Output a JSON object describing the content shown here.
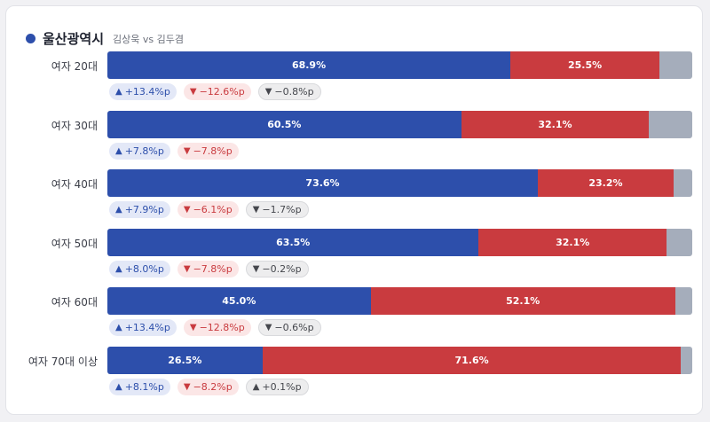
{
  "header": {
    "region": "울산광역시",
    "subtitle": "김상욱 vs 김두겸"
  },
  "colors": {
    "kim_sang_wook": "#2d4fab",
    "kim_doo_gyeom": "#c93b3f",
    "other": "#a5adbb"
  },
  "chart_data": {
    "type": "bar",
    "orientation": "horizontal-stacked",
    "categories": [
      "여자 20대",
      "여자 30대",
      "여자 40대",
      "여자 50대",
      "여자 60대",
      "여자 70대 이상"
    ],
    "series": [
      {
        "values": [
          68.9,
          60.5,
          73.6,
          63.5,
          45.0,
          26.5
        ],
        "labels": [
          "68.9%",
          "60.5%",
          "73.6%",
          "63.5%",
          "45.0%",
          "26.5%"
        ]
      },
      {
        "values": [
          25.5,
          32.1,
          23.2,
          32.1,
          52.1,
          71.6
        ],
        "labels": [
          "25.5%",
          "32.1%",
          "23.2%",
          "32.1%",
          "52.1%",
          "71.6%"
        ]
      },
      {
        "values": [
          5.6,
          7.4,
          3.2,
          4.4,
          2.9,
          1.9
        ]
      }
    ],
    "changes": [
      [
        {
          "text": "+13.4%p",
          "dir": "up",
          "style": "blue"
        },
        {
          "text": "−12.6%p",
          "dir": "down",
          "style": "red"
        },
        {
          "text": "−0.8%p",
          "dir": "down",
          "style": "gray"
        }
      ],
      [
        {
          "text": "+7.8%p",
          "dir": "up",
          "style": "blue"
        },
        {
          "text": "−7.8%p",
          "dir": "down",
          "style": "red"
        }
      ],
      [
        {
          "text": "+7.9%p",
          "dir": "up",
          "style": "blue"
        },
        {
          "text": "−6.1%p",
          "dir": "down",
          "style": "red"
        },
        {
          "text": "−1.7%p",
          "dir": "down",
          "style": "gray"
        }
      ],
      [
        {
          "text": "+8.0%p",
          "dir": "up",
          "style": "blue"
        },
        {
          "text": "−7.8%p",
          "dir": "down",
          "style": "red"
        },
        {
          "text": "−0.2%p",
          "dir": "down",
          "style": "gray"
        }
      ],
      [
        {
          "text": "+13.4%p",
          "dir": "up",
          "style": "blue"
        },
        {
          "text": "−12.8%p",
          "dir": "down",
          "style": "red"
        },
        {
          "text": "−0.6%p",
          "dir": "down",
          "style": "gray"
        }
      ],
      [
        {
          "text": "+8.1%p",
          "dir": "up",
          "style": "blue"
        },
        {
          "text": "−8.2%p",
          "dir": "down",
          "style": "red"
        },
        {
          "text": "+0.1%p",
          "dir": "up",
          "style": "gray"
        }
      ]
    ],
    "xlim": [
      0,
      100
    ]
  }
}
